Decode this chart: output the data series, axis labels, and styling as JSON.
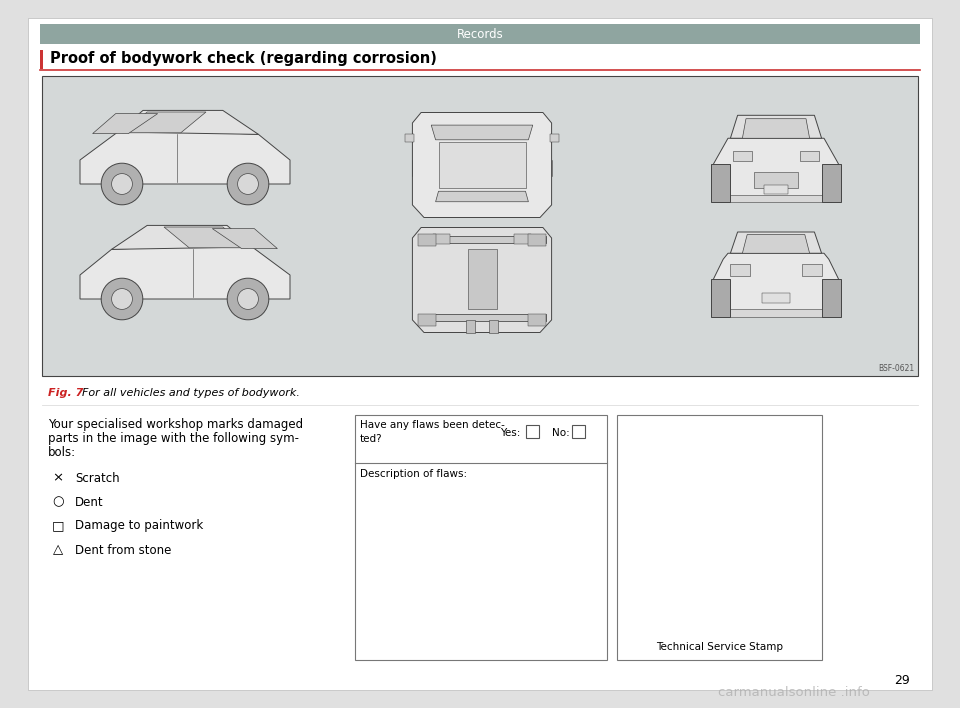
{
  "page_bg": "#e0e0e0",
  "content_bg": "#ffffff",
  "header_bg": "#8fa5a0",
  "header_text": "Records",
  "header_text_color": "#ffffff",
  "section_title": "Proof of bodywork check (regarding corrosion)",
  "section_title_color": "#000000",
  "accent_color": "#cc3333",
  "car_diagram_bg": "#d4d8d8",
  "fig_label": "Fig. 7",
  "fig_label_color": "#cc2222",
  "fig_caption": "  For all vehicles and types of bodywork.",
  "body_text_line1": "Your specialised workshop marks damaged",
  "body_text_line2": "parts in the image with the following sym-",
  "body_text_line3": "bols:",
  "symbols": [
    {
      "symbol": "×",
      "label": "Scratch"
    },
    {
      "symbol": "○",
      "label": "Dent"
    },
    {
      "symbol": "□",
      "label": "Damage to paintwork"
    },
    {
      "symbol": "△",
      "label": "Dent from stone"
    }
  ],
  "form_q": "Have any flaws been detec-\nted?",
  "form_yes": "Yes:",
  "form_no": "No:",
  "form_desc": "Description of flaws:",
  "stamp_label": "Technical Service Stamp",
  "page_number": "29",
  "code_label": "BSF-0621",
  "watermark": "carmanualsonline .info"
}
